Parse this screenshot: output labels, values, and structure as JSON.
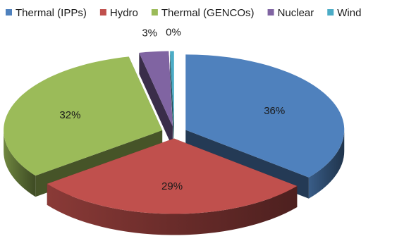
{
  "chart_data": {
    "type": "pie",
    "title": "",
    "legend_position": "top",
    "series": [
      {
        "name": "Thermal (IPPs)",
        "value": 36,
        "label": "36%",
        "color": "#4f81bd"
      },
      {
        "name": "Hydro",
        "value": 29,
        "label": "29%",
        "color": "#c0504d"
      },
      {
        "name": "Thermal (GENCOs)",
        "value": 32,
        "label": "32%",
        "color": "#9bbb59"
      },
      {
        "name": "Nuclear",
        "value": 3,
        "label": "3%",
        "color": "#8064a2"
      },
      {
        "name": "Wind",
        "value": 0.4,
        "label": "0%",
        "color": "#4bacc6"
      }
    ]
  }
}
